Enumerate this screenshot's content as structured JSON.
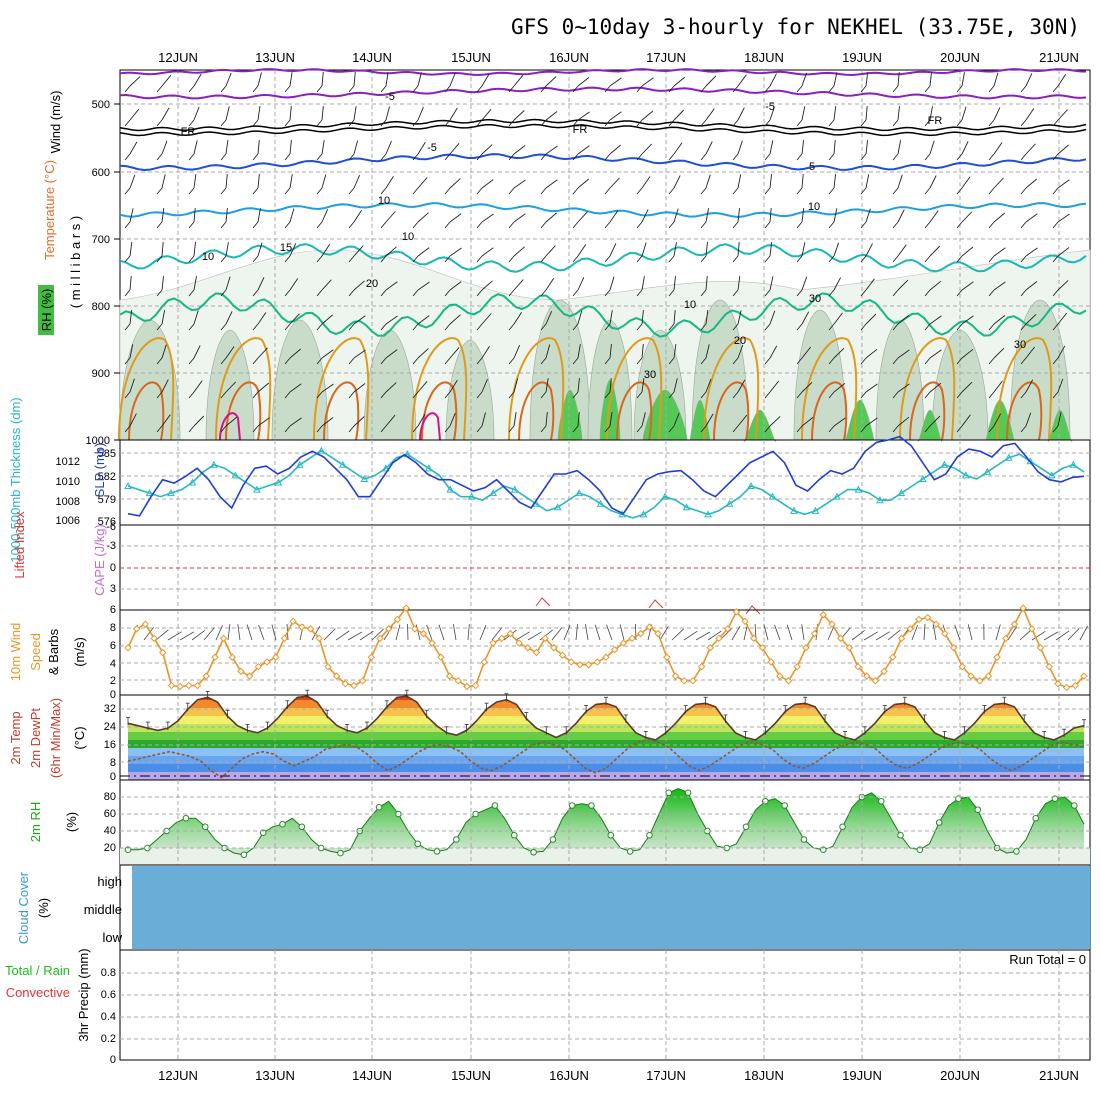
{
  "title": "GFS 0~10day 3-hourly for NEKHEL (33.75E, 30N)",
  "dates": [
    "12JUN",
    "13JUN",
    "14JUN",
    "15JUN",
    "16JUN",
    "17JUN",
    "18JUN",
    "19JUN",
    "20JUN",
    "21JUN"
  ],
  "colors": {
    "purple": "#8a1fbf",
    "fr": "#000000",
    "blue5": "#1f4fd6",
    "cyan10": "#1aa0e0",
    "teal15": "#16b8b8",
    "green20": "#14b887",
    "orange": "#e09a1a",
    "darkorange": "#d9661a",
    "magenta": "#d4148a",
    "slp": "#1f3fcf",
    "thick": "#27b8c0",
    "li": "#e23434",
    "wind10m": "#e8962a",
    "rh2m": "#18c218",
    "cloud": "#6aaed8",
    "dew": "#8a5a3a"
  },
  "panels": {
    "upper": {
      "ylabel_wind": "Wind (m/s)",
      "ylabel_temp": "Temperature (°C)",
      "ylabel_rh": "RH (%)",
      "ylabel_mb": "( m i l l i b a r s )",
      "levels": [
        "500",
        "600",
        "700",
        "800",
        "900",
        "1000"
      ],
      "contour_labels": [
        "-5",
        "-5",
        "FR",
        "FR",
        "FR",
        "-5",
        "5",
        "10",
        "10",
        "15",
        "20",
        "20",
        "10",
        "10",
        "30",
        "30",
        "30",
        "10"
      ]
    },
    "thickness": {
      "ylabel_left": "1000-500mb Thickness (dm)",
      "ylabel_right": "SLP (mb)",
      "left_ticks": [
        "585",
        "582",
        "579",
        "576"
      ],
      "right_ticks": [
        "1012",
        "1010",
        "1008",
        "1006"
      ]
    },
    "instability": {
      "ylabel_left": "Lifted Index",
      "ylabel_right": "CAPE (J/kg)",
      "ticks": [
        "-6",
        "-3",
        "0",
        "3",
        "6"
      ]
    },
    "wind10m": {
      "ylabel": [
        "10m Wind",
        "Speed",
        "& Barbs"
      ],
      "unit": "(m/s)",
      "ticks": [
        "8",
        "6",
        "4",
        "2",
        "0"
      ]
    },
    "temp2m": {
      "ylabel": [
        "2m Temp",
        "2m DewPt",
        "(6hr Min/Max)"
      ],
      "unit": "(°C)",
      "ticks": [
        "32",
        "24",
        "16",
        "8",
        "0"
      ]
    },
    "rh2m": {
      "ylabel": "2m RH",
      "unit": "(%)",
      "ticks": [
        "80",
        "60",
        "40",
        "20"
      ]
    },
    "cloud": {
      "ylabel": "Cloud Cover",
      "unit": "(%)",
      "levels": [
        "high",
        "middle",
        "low"
      ]
    },
    "precip": {
      "ylabel_total": "Total / Rain",
      "ylabel_conv": "Convective",
      "ylabel": "3hr Precip (mm)",
      "ticks": [
        "0.8",
        "0.6",
        "0.4",
        "0.2",
        "0"
      ],
      "run_total": "Run Total = 0"
    }
  },
  "chart_data": [
    {
      "type": "line",
      "name": "1000-500mb Thickness",
      "unit": "dm",
      "ylim": [
        575,
        587
      ],
      "values": [
        580.5,
        580,
        579.5,
        579,
        579.5,
        580,
        581,
        582.5,
        583.5,
        583,
        582,
        581,
        580,
        580.5,
        581,
        582,
        583.5,
        584.5,
        585.5,
        584.5,
        583.5,
        582.5,
        581.5,
        582,
        583,
        584.5,
        585,
        584,
        583,
        582,
        580,
        579,
        579,
        578.5,
        579.5,
        580.5,
        580,
        579,
        578,
        577,
        577.5,
        578.5,
        579.5,
        579,
        578,
        577,
        576.5,
        576,
        576.5,
        577.5,
        579,
        578.5,
        577.5,
        577,
        576.5,
        577,
        578,
        579,
        580.5,
        580,
        579,
        578,
        577,
        576.5,
        577,
        578,
        579,
        580,
        580,
        579.5,
        578.5,
        578.5,
        579.5,
        580.5,
        581.5,
        582.5,
        583.5,
        583,
        582,
        581.5,
        582.5,
        583.5,
        584.5,
        585,
        584,
        583,
        582,
        583,
        583.5,
        582.5
      ]
    },
    {
      "type": "line",
      "name": "SLP",
      "unit": "mb",
      "ylim": [
        1005.5,
        1013
      ],
      "values": [
        1006.5,
        1006.3,
        1008,
        1009.5,
        1009.2,
        1009.8,
        1010.5,
        1009.5,
        1008,
        1007,
        1009,
        1010.5,
        1010.7,
        1010,
        1010.5,
        1011.5,
        1012,
        1011.5,
        1010.5,
        1009.5,
        1008,
        1008,
        1009.5,
        1011,
        1011.7,
        1011,
        1010,
        1009.5,
        1009.5,
        1009,
        1008.5,
        1008.8,
        1009.5,
        1008.5,
        1007.5,
        1007,
        1008.5,
        1010,
        1010,
        1010.3,
        1009.5,
        1008.5,
        1007,
        1006.5,
        1008,
        1009.5,
        1010,
        1010.2,
        1010.3,
        1009.5,
        1008.5,
        1008,
        1009,
        1010,
        1011,
        1011.5,
        1012,
        1011,
        1009,
        1008.5,
        1009.5,
        1010.3,
        1010,
        1010.5,
        1012,
        1012.8,
        1013,
        1013.3,
        1012.5,
        1011,
        1009.5,
        1010,
        1011.5,
        1012.2,
        1012,
        1011.5,
        1012.5,
        1012.7,
        1011.5,
        1010.2,
        1009.5,
        1009.3,
        1009.7,
        1009.8
      ]
    },
    {
      "type": "line",
      "name": "10m Wind Speed",
      "unit": "m/s",
      "ylim": [
        0,
        9
      ],
      "values": [
        5,
        7,
        7.5,
        6,
        4.5,
        1,
        0.9,
        1,
        1,
        2,
        4,
        6,
        4,
        2.5,
        2,
        3,
        3.5,
        4,
        6,
        7.8,
        7.2,
        7,
        6,
        3,
        2,
        1.2,
        1,
        1.5,
        4,
        6,
        7,
        8,
        9.2,
        7,
        6.5,
        5.5,
        4,
        2,
        1.5,
        0.9,
        1,
        3.5,
        5.5,
        6,
        6.5,
        5.5,
        5,
        4.5,
        6,
        5,
        4.2,
        3.5,
        3.2,
        3.2,
        3.5,
        4,
        4.8,
        5.5,
        6,
        6.5,
        7.2,
        6.5,
        4,
        2,
        1.5,
        1.5,
        3,
        5,
        6,
        7,
        8.8,
        7.8,
        6,
        5,
        3.5,
        2,
        1.5,
        3,
        5,
        6.5,
        8.5,
        7.5,
        6,
        5,
        3,
        2,
        1.5,
        2.5,
        4,
        6,
        7,
        8,
        8.2,
        7.5,
        6.5,
        5,
        3,
        2,
        1.5,
        2,
        4,
        6,
        7.5,
        9.2,
        7,
        5,
        3,
        1.2,
        0.8,
        1,
        2
      ]
    },
    {
      "type": "line",
      "name": "2m Temp",
      "unit": "°C",
      "ylim": [
        0,
        36
      ],
      "values": [
        24,
        23,
        22,
        21,
        22,
        25,
        30,
        34,
        35,
        33,
        27,
        23,
        21,
        20,
        22,
        26,
        31,
        35,
        35.5,
        33,
        27,
        23,
        21,
        20,
        22,
        26,
        31,
        35,
        35.5,
        33,
        27,
        23,
        20,
        19,
        21,
        25,
        30,
        33,
        34,
        32,
        26,
        22,
        20,
        18,
        20,
        24,
        29,
        32,
        32.5,
        31,
        25,
        20,
        18,
        17,
        20,
        24,
        29,
        32,
        32.5,
        31,
        25,
        20,
        18,
        17,
        20,
        24,
        29,
        32,
        32.5,
        31,
        25,
        20,
        18,
        17,
        20,
        24,
        29,
        32,
        32.5,
        31,
        25,
        20,
        18,
        17,
        20,
        24,
        29,
        32,
        32.5,
        31,
        25,
        20,
        18,
        17,
        19,
        22,
        23
      ]
    },
    {
      "type": "line",
      "name": "2m DewPt",
      "unit": "°C",
      "ylim": [
        0,
        36
      ],
      "values": [
        8,
        9,
        10,
        11,
        12,
        11,
        10,
        8,
        4,
        1,
        5,
        9,
        11,
        12,
        11,
        8,
        6,
        8,
        10,
        13,
        14,
        15,
        14,
        11,
        7,
        4,
        6,
        9,
        12,
        14,
        15,
        14,
        12,
        8,
        5,
        4,
        6,
        9,
        12,
        15,
        16,
        15,
        13,
        9,
        5,
        3,
        5,
        9,
        13,
        16,
        17,
        16,
        14,
        10,
        6,
        4,
        6,
        9,
        12,
        15,
        16,
        15,
        13,
        9,
        6,
        5,
        7,
        10,
        13,
        15,
        16,
        15,
        13,
        9,
        6,
        5,
        7,
        10,
        13,
        15,
        16,
        15,
        13,
        9,
        6,
        4,
        6,
        9,
        12,
        15,
        16,
        15,
        14
      ]
    },
    {
      "type": "area",
      "name": "2m RH",
      "unit": "%",
      "ylim": [
        0,
        100
      ],
      "values": [
        18,
        18,
        20,
        30,
        40,
        50,
        55,
        55,
        45,
        30,
        20,
        14,
        12,
        20,
        38,
        45,
        48,
        55,
        45,
        30,
        20,
        16,
        14,
        18,
        40,
        55,
        68,
        75,
        60,
        40,
        25,
        18,
        16,
        18,
        30,
        50,
        60,
        65,
        70,
        55,
        35,
        20,
        15,
        16,
        30,
        55,
        70,
        72,
        70,
        55,
        35,
        20,
        16,
        18,
        35,
        60,
        85,
        90,
        85,
        60,
        40,
        22,
        20,
        25,
        45,
        65,
        75,
        78,
        70,
        50,
        30,
        20,
        18,
        22,
        45,
        68,
        80,
        85,
        75,
        55,
        35,
        20,
        18,
        25,
        50,
        70,
        78,
        80,
        65,
        40,
        20,
        14,
        16,
        30,
        55,
        72,
        78,
        80,
        70,
        48
      ]
    },
    {
      "type": "bar",
      "name": "3hr Precip",
      "unit": "mm",
      "ylim": [
        0,
        1
      ],
      "values": [
        0
      ]
    }
  ]
}
